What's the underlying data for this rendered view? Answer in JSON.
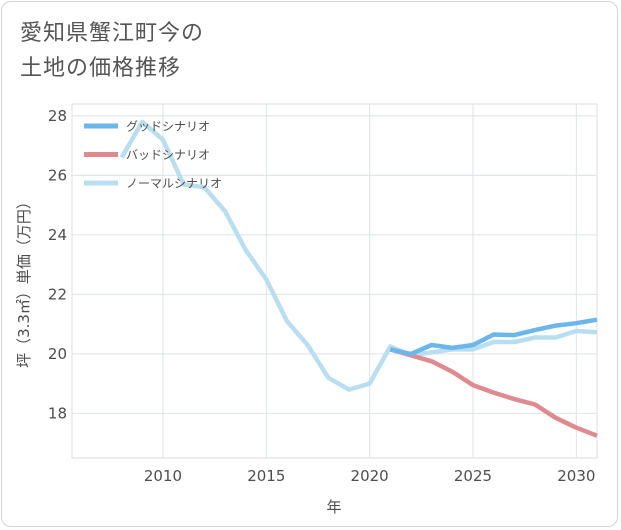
{
  "title": {
    "line1": "愛知県蟹江町今の",
    "line2": "土地の価格推移"
  },
  "chart_data": {
    "type": "line",
    "xlabel": "年",
    "ylabel": "坪（3.3㎡）単価（万円）",
    "xlim": [
      2005.6,
      2031
    ],
    "ylim": [
      16.5,
      28.4
    ],
    "xticks": [
      2010,
      2015,
      2020,
      2025,
      2030
    ],
    "yticks": [
      18,
      20,
      22,
      24,
      26,
      28
    ],
    "grid": true,
    "legend_position": "top-left",
    "series": [
      {
        "name": "グッドシナリオ",
        "color": "#6bb6ea",
        "x": [
          2021,
          2022,
          2023,
          2024,
          2025,
          2026,
          2027,
          2028,
          2029,
          2030,
          2031
        ],
        "y": [
          20.15,
          20.0,
          20.3,
          20.2,
          20.3,
          20.65,
          20.63,
          20.8,
          20.95,
          21.03,
          21.15
        ]
      },
      {
        "name": "バッドシナリオ",
        "color": "#df8a8f",
        "x": [
          2021,
          2022,
          2023,
          2024,
          2025,
          2026,
          2027,
          2028,
          2029,
          2030,
          2031
        ],
        "y": [
          20.15,
          19.95,
          19.75,
          19.4,
          18.95,
          18.7,
          18.48,
          18.3,
          17.85,
          17.52,
          17.25
        ]
      },
      {
        "name": "ノーマルシナリオ",
        "color": "#b8def0",
        "x": [
          2008,
          2009,
          2010,
          2011,
          2012,
          2013,
          2014,
          2015,
          2016,
          2017,
          2018,
          2019,
          2020,
          2021,
          2022,
          2023,
          2024,
          2025,
          2026,
          2027,
          2028,
          2029,
          2030,
          2031
        ],
        "y": [
          26.6,
          27.8,
          27.2,
          25.7,
          25.6,
          24.8,
          23.5,
          22.5,
          21.1,
          20.3,
          19.2,
          18.8,
          19.0,
          20.25,
          19.95,
          20.05,
          20.15,
          20.15,
          20.4,
          20.4,
          20.55,
          20.55,
          20.77,
          20.73
        ]
      }
    ]
  }
}
